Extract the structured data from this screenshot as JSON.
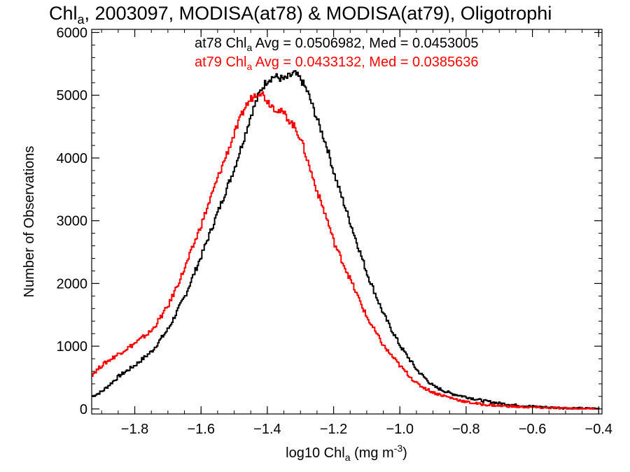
{
  "chart_data": {
    "type": "line",
    "step": true,
    "title": {
      "main": "Chl",
      "sub": "a",
      "rest": ", 2003097, MODISA(at78) & MODISA(at79), Oligotrophi"
    },
    "xlabel": {
      "pre": "log10 Chl",
      "sub": "a",
      "mid": " (mg m",
      "sup": "-3",
      "post": ")"
    },
    "ylabel": "Number of Observations",
    "xlim": [
      -1.93,
      -0.39
    ],
    "ylim": [
      -80,
      6050
    ],
    "x_ticks": [
      -1.8,
      -1.6,
      -1.4,
      -1.2,
      -1.0,
      -0.8,
      -0.6,
      -0.4
    ],
    "x_tick_labels": [
      "−1.8",
      "−1.6",
      "−1.4",
      "−1.2",
      "−1.0",
      "−0.8",
      "−0.6",
      "−0.4"
    ],
    "y_ticks": [
      0,
      1000,
      2000,
      3000,
      4000,
      5000,
      6000
    ],
    "y_tick_labels": [
      "0",
      "1000",
      "2000",
      "3000",
      "4000",
      "5000",
      "6000"
    ],
    "annotations": [
      {
        "pre": "at78 Chl",
        "sub": "a",
        "post": " Avg = 0.0506982, Med = 0.0453005",
        "color": "#000000"
      },
      {
        "pre": "at79 Chl",
        "sub": "a",
        "post": " Avg = 0.0433132, Med = 0.0385636",
        "color": "#ff0000"
      }
    ],
    "series": [
      {
        "color": "#000000",
        "x": [
          -1.93,
          -1.9,
          -1.85,
          -1.8,
          -1.75,
          -1.7,
          -1.65,
          -1.6,
          -1.55,
          -1.5,
          -1.47,
          -1.45,
          -1.42,
          -1.4,
          -1.38,
          -1.35,
          -1.32,
          -1.3,
          -1.28,
          -1.25,
          -1.22,
          -1.2,
          -1.15,
          -1.1,
          -1.05,
          -1.0,
          -0.95,
          -0.9,
          -0.85,
          -0.8,
          -0.75,
          -0.7,
          -0.65,
          -0.6,
          -0.55,
          -0.5,
          -0.45,
          -0.4
        ],
        "y": [
          200,
          280,
          520,
          700,
          920,
          1280,
          1800,
          2450,
          3150,
          3850,
          4350,
          4700,
          5100,
          5250,
          5300,
          5250,
          5350,
          5250,
          5050,
          4600,
          4150,
          3750,
          2950,
          2150,
          1500,
          1000,
          620,
          360,
          250,
          190,
          130,
          90,
          60,
          40,
          25,
          15,
          10,
          5
        ]
      },
      {
        "color": "#ff0000",
        "x": [
          -1.93,
          -1.9,
          -1.85,
          -1.8,
          -1.75,
          -1.7,
          -1.65,
          -1.6,
          -1.55,
          -1.5,
          -1.47,
          -1.45,
          -1.43,
          -1.42,
          -1.4,
          -1.38,
          -1.35,
          -1.32,
          -1.3,
          -1.28,
          -1.25,
          -1.22,
          -1.2,
          -1.15,
          -1.1,
          -1.05,
          -1.0,
          -0.95,
          -0.9,
          -0.85,
          -0.8,
          -0.75,
          -0.7,
          -0.65,
          -0.6,
          -0.55,
          -0.5,
          -0.45,
          -0.4
        ],
        "y": [
          550,
          700,
          880,
          1050,
          1250,
          1650,
          2250,
          2950,
          3700,
          4400,
          4800,
          4950,
          5050,
          5050,
          4900,
          4800,
          4700,
          4500,
          4300,
          3950,
          3450,
          3000,
          2650,
          2050,
          1450,
          1000,
          680,
          400,
          260,
          180,
          110,
          70,
          50,
          35,
          25,
          15,
          10,
          5,
          3
        ]
      }
    ]
  }
}
